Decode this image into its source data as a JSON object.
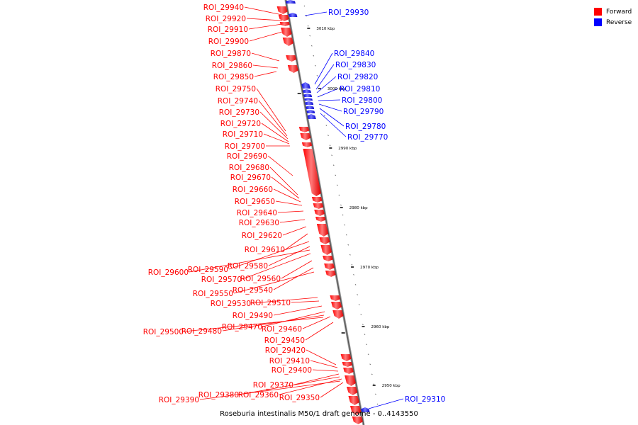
{
  "legend": {
    "forward_label": "Forward",
    "reverse_label": "Reverse",
    "forward_color": "#ff0000",
    "reverse_color": "#0000ff"
  },
  "caption": "Roseburia intestinalis M50/1 draft genome - 0..4143550",
  "scale_ticks": [
    "3010 kbp",
    "3000 kbp",
    "2990 kbp",
    "2980 kbp",
    "2970 kbp",
    "2960 kbp",
    "2950 kbp"
  ],
  "forward_labels": [
    "ROI_29940",
    "ROI_29920",
    "ROI_29910",
    "ROI_29900",
    "ROI_29870",
    "ROI_29860",
    "ROI_29850",
    "ROI_29750",
    "ROI_29740",
    "ROI_29730",
    "ROI_29720",
    "ROI_29710",
    "ROI_29700",
    "ROI_29690",
    "ROI_29680",
    "ROI_29670",
    "ROI_29660",
    "ROI_29650",
    "ROI_29640",
    "ROI_29630",
    "ROI_29620",
    "ROI_29610",
    "ROI_29590",
    "ROI_29580",
    "ROI_29600",
    "ROI_29570",
    "ROI_29560",
    "ROI_29540",
    "ROI_29550",
    "ROI_29530",
    "ROI_29510",
    "ROI_29490",
    "ROI_29470",
    "ROI_29480",
    "ROI_29500",
    "ROI_29460",
    "ROI_29450",
    "ROI_29420",
    "ROI_29410",
    "ROI_29400",
    "ROI_29370",
    "ROI_29380",
    "ROI_29360",
    "ROI_29350",
    "ROI_29390"
  ],
  "reverse_labels": [
    "ROI_29930",
    "ROI_29840",
    "ROI_29830",
    "ROI_29820",
    "ROI_29810",
    "ROI_29800",
    "ROI_29790",
    "ROI_29780",
    "ROI_29770",
    "ROI_29310"
  ]
}
